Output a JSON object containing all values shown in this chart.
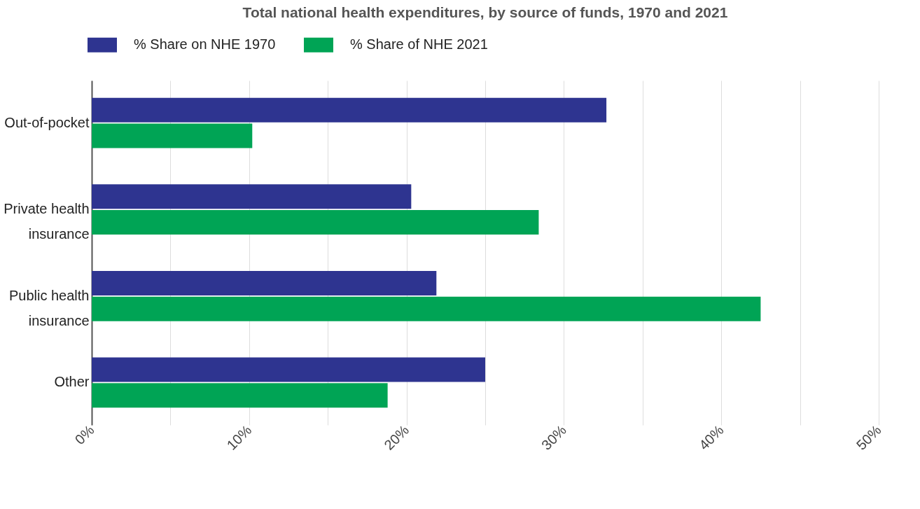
{
  "chart_data": {
    "type": "bar",
    "orientation": "horizontal",
    "title": "Total national health expenditures, by source of funds, 1970 and 2021",
    "categories": [
      "Out-of-pocket",
      "Private health insurance",
      "Public health insurance",
      "Other"
    ],
    "series": [
      {
        "name": "% Share on NHE 1970",
        "color": "#2e3490",
        "values": [
          32.7,
          20.3,
          21.9,
          25.0
        ]
      },
      {
        "name": "% Share of NHE 2021",
        "color": "#00a455",
        "values": [
          10.2,
          28.4,
          42.5,
          18.8
        ]
      }
    ],
    "xlim": [
      0,
      50
    ],
    "xticks": [
      {
        "value": 0,
        "label": "0%"
      },
      {
        "value": 5,
        "label": null
      },
      {
        "value": 10,
        "label": "10%"
      },
      {
        "value": 15,
        "label": null
      },
      {
        "value": 20,
        "label": "20%"
      },
      {
        "value": 25,
        "label": null
      },
      {
        "value": 30,
        "label": "30%"
      },
      {
        "value": 35,
        "label": null
      },
      {
        "value": 40,
        "label": "40%"
      },
      {
        "value": 45,
        "label": null
      },
      {
        "value": 50,
        "label": "50%"
      }
    ],
    "grid": "x",
    "legend": "top left"
  }
}
